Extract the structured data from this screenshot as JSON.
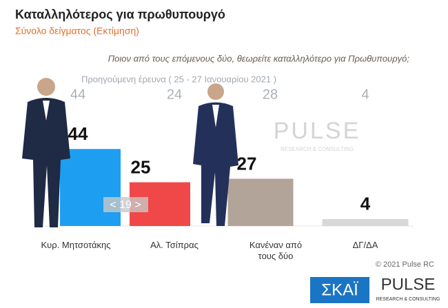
{
  "chart_data": {
    "type": "bar",
    "title": "Καταλληλότερος για πρωθυπουργό",
    "subtitle": "Σύνολο δείγματος   (Εκτίμηση)",
    "question": "Ποιον από τους επόμενους δύο, θεωρείτε καταλληλότερο για Πρωθυπουργό;",
    "categories": [
      "Κυρ. Μητσοτάκης",
      "Αλ. Τσίπρας",
      "Κανέναν από τους δύο",
      "ΔΓ/ΔΑ"
    ],
    "values": [
      44,
      25,
      27,
      4
    ],
    "colors": [
      "#1e9ef0",
      "#f04848",
      "#b3a49a",
      "#d8d8d8"
    ],
    "ylim": [
      0,
      50
    ],
    "previous": {
      "label": "Προηγούμενη έρευνα  ( 25 - 27 Ιανουαρίου  2021 )",
      "values": [
        44,
        24,
        28,
        4
      ]
    },
    "annotation": "< 19 >",
    "credit": "© 2021 Pulse RC",
    "logo_left": "ΣΚΑΪ",
    "logo_right": "PULSE",
    "logo_right_tagline": "RESEARCH & CONSULTING"
  }
}
